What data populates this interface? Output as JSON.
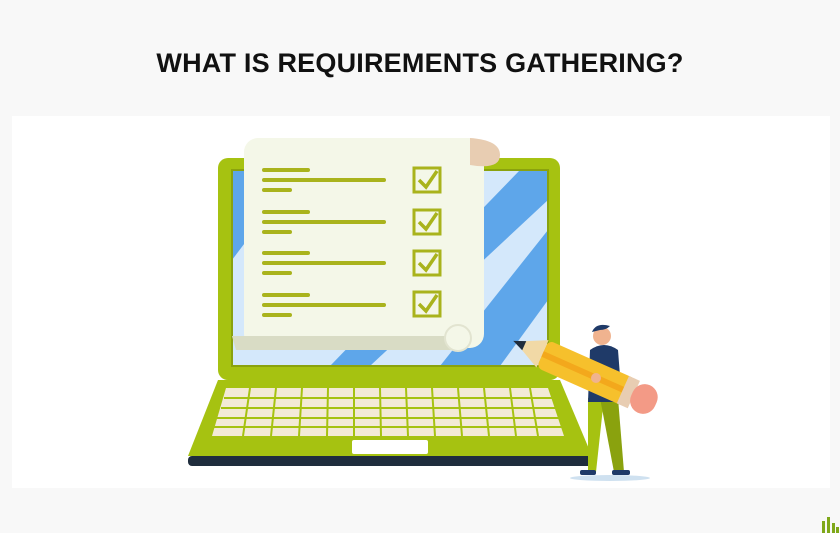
{
  "header": {
    "title": "WHAT IS REQUIREMENTS GATHERING?"
  },
  "illustration": {
    "subject": "laptop-with-checklist",
    "checklist_items": [
      {
        "checked": true
      },
      {
        "checked": true
      },
      {
        "checked": true
      },
      {
        "checked": true
      }
    ]
  },
  "colors": {
    "laptop_green": "#a6c211",
    "laptop_dark_green": "#8aa20e",
    "screen_blue": "#5ea6ea",
    "screen_light": "#d4e8fb",
    "paper": "#f4f7e8",
    "paper_roll": "#e8cdb2",
    "olive_line": "#a9b31c",
    "keys": "#f3ead6",
    "pencil_yellow": "#f6c02c",
    "pencil_pink": "#f39a86",
    "shirt_navy": "#1f3a68"
  }
}
